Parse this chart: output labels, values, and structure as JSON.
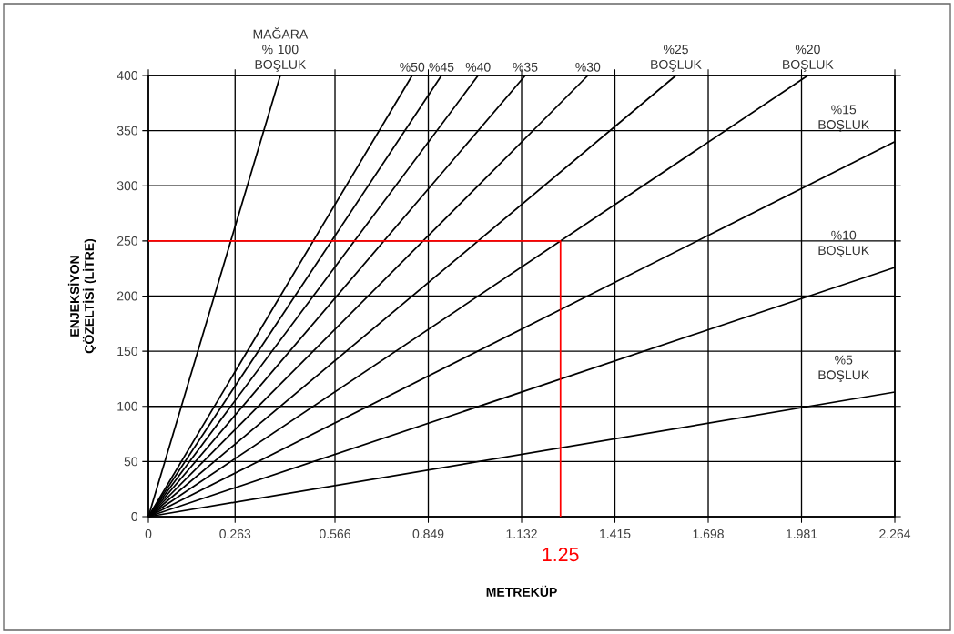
{
  "chart_data": {
    "type": "line",
    "xlabel": "METREKÜP",
    "ylabel": "ENJEKSİYON ÇÖZELTİSİ (LİTRE)",
    "xlim": [
      0,
      2.264
    ],
    "ylim": [
      0,
      400
    ],
    "xticks": [
      0,
      0.263,
      0.566,
      0.849,
      1.132,
      1.415,
      1.698,
      1.981,
      2.264
    ],
    "yticks": [
      0,
      50,
      100,
      150,
      200,
      250,
      300,
      350,
      400
    ],
    "grid": true,
    "legend": "top right",
    "series": [
      {
        "name": "MAĞARA % 100 BOŞLUK",
        "color": "#000000",
        "x": [
          0,
          0.4
        ],
        "values": [
          0,
          400
        ]
      },
      {
        "name": "%50",
        "color": "#000000",
        "x": [
          0,
          0.8
        ],
        "values": [
          0,
          400
        ]
      },
      {
        "name": "%45",
        "color": "#000000",
        "x": [
          0,
          0.889
        ],
        "values": [
          0,
          400
        ]
      },
      {
        "name": "%40",
        "color": "#000000",
        "x": [
          0,
          1.0
        ],
        "values": [
          0,
          400
        ]
      },
      {
        "name": "%35",
        "color": "#000000",
        "x": [
          0,
          1.143
        ],
        "values": [
          0,
          400
        ]
      },
      {
        "name": "%30",
        "color": "#000000",
        "x": [
          0,
          1.333
        ],
        "values": [
          0,
          400
        ]
      },
      {
        "name": "%25 BOŞLUK",
        "color": "#000000",
        "x": [
          0,
          1.6
        ],
        "values": [
          0,
          400
        ]
      },
      {
        "name": "%20 BOŞLUK",
        "color": "#000000",
        "x": [
          0,
          2.0
        ],
        "values": [
          0,
          400
        ]
      },
      {
        "name": "%15 BOŞLUK",
        "color": "#000000",
        "x": [
          0,
          2.264
        ],
        "values": [
          0,
          340
        ]
      },
      {
        "name": "%10 BOŞLUK",
        "color": "#000000",
        "x": [
          0,
          2.264
        ],
        "values": [
          0,
          226
        ]
      },
      {
        "name": "%5 BOŞLUK",
        "color": "#000000",
        "x": [
          0,
          2.264
        ],
        "values": [
          0,
          113
        ]
      },
      {
        "color": "#ff0000",
        "x": [
          0,
          1.25,
          1.25
        ],
        "values": [
          250,
          250,
          0
        ]
      }
    ],
    "annotations": [
      "1.25"
    ]
  }
}
